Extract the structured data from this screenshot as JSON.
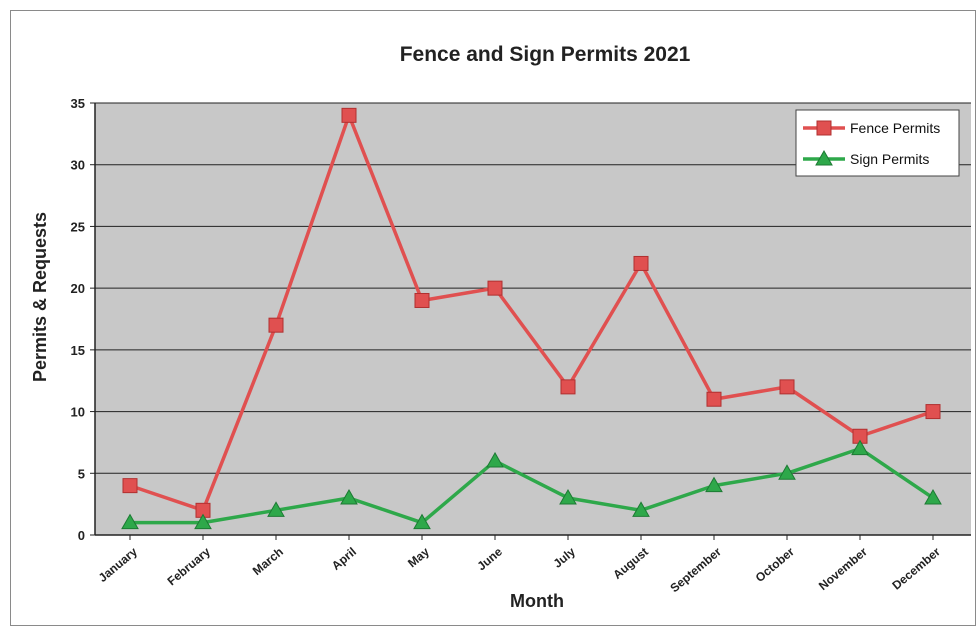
{
  "chart_data": {
    "type": "line",
    "title": "Fence and Sign Permits 2021",
    "xlabel": "Month",
    "ylabel": "Permits & Requests",
    "categories": [
      "January",
      "February",
      "March",
      "April",
      "May",
      "June",
      "July",
      "August",
      "September",
      "October",
      "November",
      "December"
    ],
    "series": [
      {
        "name": "Fence Permits",
        "color": "#e05050",
        "marker": "square",
        "values": [
          4,
          2,
          17,
          34,
          19,
          20,
          12,
          22,
          11,
          12,
          8,
          10
        ]
      },
      {
        "name": "Sign Permits",
        "color": "#2ea84a",
        "marker": "triangle",
        "values": [
          1,
          1,
          2,
          3,
          1,
          6,
          3,
          2,
          4,
          5,
          7,
          3
        ]
      }
    ],
    "ylim": [
      0,
      35
    ],
    "yticks": [
      0,
      5,
      10,
      15,
      20,
      25,
      30,
      35
    ],
    "grid": true,
    "legend": "top-right",
    "plot_background": "#c8c8c8"
  }
}
